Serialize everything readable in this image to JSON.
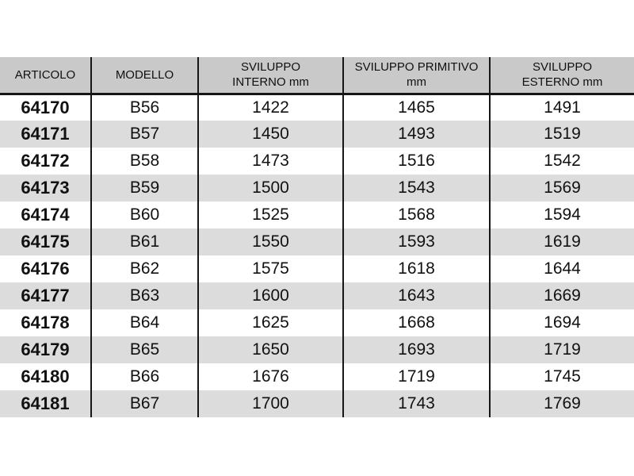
{
  "page": {
    "background": "#ffffff"
  },
  "table": {
    "columns": [
      {
        "id": "articolo",
        "label_lines": [
          "ARTICOLO"
        ]
      },
      {
        "id": "modello",
        "label_lines": [
          "MODELLO"
        ]
      },
      {
        "id": "sviluppo-interno",
        "label_lines": [
          "SVILUPPO",
          "INTERNO mm"
        ]
      },
      {
        "id": "sviluppo-primitivo",
        "label_lines": [
          "SVILUPPO PRIMITIVO",
          "mm"
        ]
      },
      {
        "id": "sviluppo-esterno",
        "label_lines": [
          "SVILUPPO",
          "ESTERNO mm"
        ]
      }
    ],
    "rows": [
      [
        "64170",
        "B56",
        "1422",
        "1465",
        "1491"
      ],
      [
        "64171",
        "B57",
        "1450",
        "1493",
        "1519"
      ],
      [
        "64172",
        "B58",
        "1473",
        "1516",
        "1542"
      ],
      [
        "64173",
        "B59",
        "1500",
        "1543",
        "1569"
      ],
      [
        "64174",
        "B60",
        "1525",
        "1568",
        "1594"
      ],
      [
        "64175",
        "B61",
        "1550",
        "1593",
        "1619"
      ],
      [
        "64176",
        "B62",
        "1575",
        "1618",
        "1644"
      ],
      [
        "64177",
        "B63",
        "1600",
        "1643",
        "1669"
      ],
      [
        "64178",
        "B64",
        "1625",
        "1668",
        "1694"
      ],
      [
        "64179",
        "B65",
        "1650",
        "1693",
        "1719"
      ],
      [
        "64180",
        "B66",
        "1676",
        "1719",
        "1745"
      ],
      [
        "64181",
        "B67",
        "1700",
        "1743",
        "1769"
      ]
    ],
    "colors": {
      "header_bg": "#c9c9c9",
      "stripe_bg": "#dcdcdc",
      "row_bg": "#ffffff",
      "grid_line": "#161616",
      "text": "#111111"
    }
  }
}
